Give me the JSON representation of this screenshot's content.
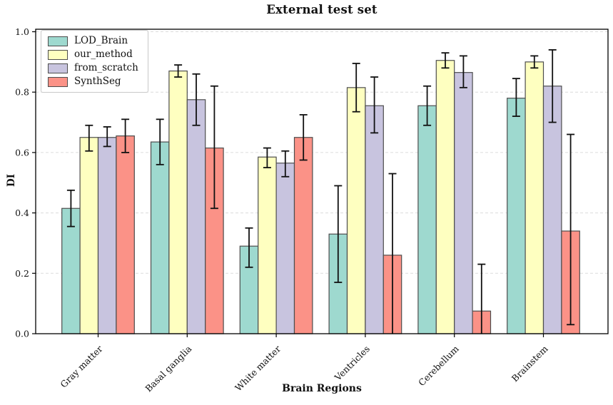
{
  "chart_data": {
    "type": "bar",
    "title": "External test set",
    "xlabel": "Brain Regions",
    "ylabel": "DI",
    "ylim": [
      0.0,
      1.0
    ],
    "yticks": [
      0.0,
      0.2,
      0.4,
      0.6,
      0.8,
      1.0
    ],
    "grid": "horizontal dashed light-gray",
    "legend_position": "upper left",
    "bar_edge_color": "#4d4d4d",
    "error_bar_color": "#111111",
    "x_tick_label_rotation_deg": 45,
    "categories": [
      "Gray matter",
      "Basal ganglia",
      "White matter",
      "Ventricles",
      "Cerebellum",
      "Brainstem"
    ],
    "series": [
      {
        "name": "LOD_Brain",
        "color": "#9ed9cf",
        "values": [
          0.415,
          0.635,
          0.29,
          0.33,
          0.755,
          0.78
        ],
        "error_low": [
          0.355,
          0.56,
          0.22,
          0.17,
          0.69,
          0.72
        ],
        "error_high": [
          0.475,
          0.71,
          0.35,
          0.49,
          0.82,
          0.845
        ]
      },
      {
        "name": "our_method",
        "color": "#feffc0",
        "values": [
          0.65,
          0.87,
          0.585,
          0.815,
          0.905,
          0.9
        ],
        "error_low": [
          0.605,
          0.85,
          0.55,
          0.735,
          0.88,
          0.88
        ],
        "error_high": [
          0.69,
          0.89,
          0.615,
          0.895,
          0.93,
          0.92
        ]
      },
      {
        "name": "from_scratch",
        "color": "#c8c4df",
        "values": [
          0.65,
          0.775,
          0.565,
          0.755,
          0.865,
          0.82
        ],
        "error_low": [
          0.62,
          0.69,
          0.52,
          0.665,
          0.815,
          0.7
        ],
        "error_high": [
          0.685,
          0.86,
          0.605,
          0.85,
          0.92,
          0.94
        ]
      },
      {
        "name": "SynthSeg",
        "color": "#fb9287",
        "values": [
          0.655,
          0.615,
          0.65,
          0.26,
          0.075,
          0.34
        ],
        "error_low": [
          0.6,
          0.415,
          0.575,
          0.0,
          0.0,
          0.03
        ],
        "error_high": [
          0.71,
          0.82,
          0.725,
          0.53,
          0.23,
          0.66
        ]
      }
    ]
  }
}
